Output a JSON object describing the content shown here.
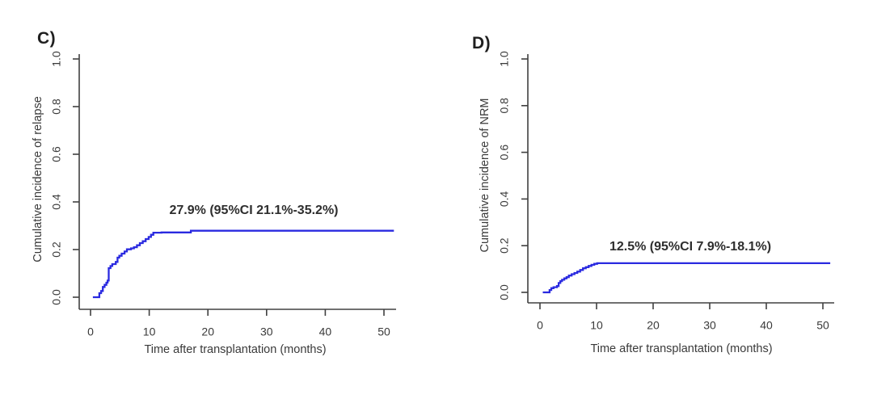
{
  "figure": {
    "background_color": "#ffffff",
    "curve_color": "#2a2ae0",
    "axis_color": "#404040"
  },
  "chart_data": [
    {
      "type": "line",
      "subtype": "step-function-cumulative-incidence",
      "panel_label": "C)",
      "ylabel": "Cumulative incidence of relapse",
      "xlabel": "Time after transplantation (months)",
      "annotation": "27.9% (95%CI 21.1%-35.2%)",
      "final_estimate_pct": 27.9,
      "ci95_pct": [
        21.1,
        35.2
      ],
      "xlim": [
        0,
        52
      ],
      "ylim": [
        0.0,
        1.0
      ],
      "x_ticks": [
        0,
        10,
        20,
        30,
        40,
        50
      ],
      "y_ticks": [
        "0.0",
        "0.2",
        "0.4",
        "0.6",
        "0.8",
        "1.0"
      ],
      "grid": false,
      "legend": "none",
      "line_color": "#2a2ae0",
      "steps": [
        [
          0.4,
          0
        ],
        [
          1.5,
          0.017
        ],
        [
          1.8,
          0.026
        ],
        [
          2.1,
          0.043
        ],
        [
          2.4,
          0.052
        ],
        [
          2.7,
          0.061
        ],
        [
          2.9,
          0.07
        ],
        [
          3.1,
          0.122
        ],
        [
          3.4,
          0.131
        ],
        [
          3.7,
          0.139
        ],
        [
          4.3,
          0.148
        ],
        [
          4.6,
          0.166
        ],
        [
          4.9,
          0.174
        ],
        [
          5.3,
          0.183
        ],
        [
          5.8,
          0.192
        ],
        [
          6.2,
          0.201
        ],
        [
          6.9,
          0.205
        ],
        [
          7.4,
          0.21
        ],
        [
          7.9,
          0.218
        ],
        [
          8.4,
          0.227
        ],
        [
          8.9,
          0.235
        ],
        [
          9.4,
          0.244
        ],
        [
          9.9,
          0.253
        ],
        [
          10.3,
          0.262
        ],
        [
          10.7,
          0.271
        ],
        [
          12.1,
          0.272
        ],
        [
          17.1,
          0.279
        ],
        [
          51.7,
          0.279
        ]
      ]
    },
    {
      "type": "line",
      "subtype": "step-function-cumulative-incidence",
      "panel_label": "D)",
      "ylabel": "Cumulative incidence of NRM",
      "xlabel": "Time after transplantation (months)",
      "annotation": "12.5% (95%CI 7.9%-18.1%)",
      "final_estimate_pct": 12.5,
      "ci95_pct": [
        7.9,
        18.1
      ],
      "xlim": [
        0,
        52
      ],
      "ylim": [
        0.0,
        1.0
      ],
      "x_ticks": [
        0,
        10,
        20,
        30,
        40,
        50
      ],
      "y_ticks": [
        "0.0",
        "0.2",
        "0.4",
        "0.6",
        "0.8",
        "1.0"
      ],
      "grid": false,
      "legend": "none",
      "line_color": "#2a2ae0",
      "steps": [
        [
          0.5,
          0
        ],
        [
          1.7,
          0.01
        ],
        [
          2.0,
          0.018
        ],
        [
          2.4,
          0.022
        ],
        [
          3.0,
          0.027
        ],
        [
          3.3,
          0.04
        ],
        [
          3.6,
          0.048
        ],
        [
          3.9,
          0.054
        ],
        [
          4.3,
          0.06
        ],
        [
          4.7,
          0.065
        ],
        [
          5.1,
          0.072
        ],
        [
          5.6,
          0.078
        ],
        [
          6.1,
          0.083
        ],
        [
          6.6,
          0.089
        ],
        [
          7.1,
          0.096
        ],
        [
          7.6,
          0.103
        ],
        [
          8.1,
          0.108
        ],
        [
          8.6,
          0.113
        ],
        [
          9.1,
          0.118
        ],
        [
          9.6,
          0.122
        ],
        [
          10.1,
          0.125
        ],
        [
          51.3,
          0.125
        ]
      ]
    }
  ]
}
